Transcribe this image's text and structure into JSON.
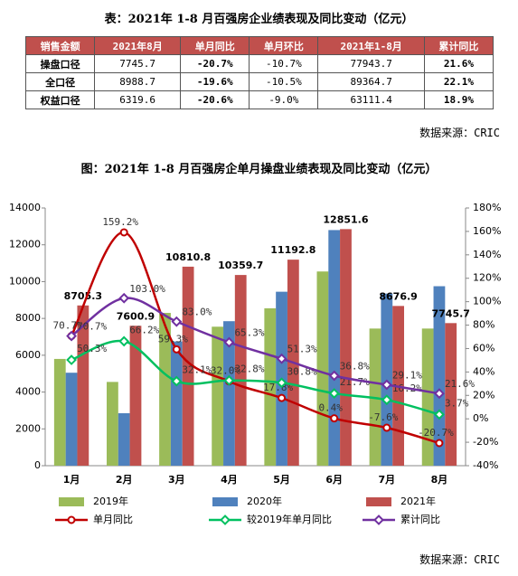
{
  "table_title": "表：2021年 1-8 月百强房企业绩表现及同比变动（亿元）",
  "table": {
    "header": [
      "销售金额",
      "2021年8月",
      "单月同比",
      "单月环比",
      "2021年1-8月",
      "累计同比"
    ],
    "rows": [
      [
        "操盘口径",
        "7745.7",
        "-20.7%",
        "-10.7%",
        "77943.7",
        "21.6%"
      ],
      [
        "全口径",
        "8988.7",
        "-19.6%",
        "-10.5%",
        "89364.7",
        "22.1%"
      ],
      [
        "权益口径",
        "6319.6",
        "-20.6%",
        "-9.0%",
        "63111.4",
        "18.9%"
      ]
    ]
  },
  "table_source": "数据来源：CRIC",
  "chart_data": {
    "type": "bar",
    "title": "图：2021年 1-8 月百强房企单月操盘业绩表现及同比变动（亿元）",
    "categories": [
      "1月",
      "2月",
      "3月",
      "4月",
      "5月",
      "6月",
      "7月",
      "8月"
    ],
    "series": [
      {
        "name": "2019年",
        "type": "bar",
        "color": "#9bbb59",
        "values": [
          5800,
          4550,
          8300,
          7550,
          8550,
          10550,
          7450,
          7450
        ]
      },
      {
        "name": "2020年",
        "type": "bar",
        "color": "#4f81bd",
        "values": [
          5050,
          2850,
          6750,
          7850,
          9450,
          12800,
          9350,
          9750
        ]
      },
      {
        "name": "2021年",
        "type": "bar",
        "color": "#c0504d",
        "values": [
          8705.3,
          7600.9,
          10810.8,
          10359.7,
          11192.8,
          12851.6,
          8676.9,
          7745.7
        ]
      },
      {
        "name": "单月同比",
        "type": "line",
        "axis": "y2",
        "color": "#c00000",
        "marker": "circle",
        "values": [
          70.7,
          159.2,
          59.3,
          32.0,
          17.8,
          0.4,
          -7.6,
          -20.7
        ],
        "value_labels": [
          "70.7%",
          "159.2%",
          "59.3%",
          "32.0%",
          "17.8%",
          "0.4%",
          "-7.6%",
          "-20.7%"
        ]
      },
      {
        "name": "较2019年单月同比",
        "type": "line",
        "axis": "y2",
        "color": "#00c060",
        "marker": "diamond",
        "values": [
          50.3,
          66.2,
          32.1,
          32.8,
          30.8,
          21.7,
          16.2,
          3.7
        ],
        "value_labels": [
          "50.3%",
          "66.2%",
          "32.1%",
          "32.8%",
          "30.8%",
          "21.7%",
          "16.2%",
          "3.7%"
        ]
      },
      {
        "name": "累计同比",
        "type": "line",
        "axis": "y2",
        "color": "#7030a0",
        "marker": "diamond",
        "values": [
          70.7,
          103.0,
          83.0,
          65.3,
          51.3,
          36.8,
          29.1,
          21.6
        ],
        "value_labels": [
          "70.7%",
          "103.0%",
          "83.0%",
          "65.3%",
          "51.3%",
          "36.8%",
          "29.1%",
          "21.6%"
        ]
      }
    ],
    "ylim": [
      0,
      14000
    ],
    "yticks": [
      0,
      2000,
      4000,
      6000,
      8000,
      10000,
      12000,
      14000
    ],
    "y2lim": [
      -40,
      180
    ],
    "y2ticks": [
      {
        "value": -40,
        "label": "-40%"
      },
      {
        "value": -20,
        "label": "-20%"
      },
      {
        "value": 0,
        "label": "0%"
      },
      {
        "value": 20,
        "label": "20%"
      },
      {
        "value": 40,
        "label": "40%"
      },
      {
        "value": 60,
        "label": "60%"
      },
      {
        "value": 80,
        "label": "80%"
      },
      {
        "value": 100,
        "label": "100%"
      },
      {
        "value": 120,
        "label": "120%"
      },
      {
        "value": 140,
        "label": "140%"
      },
      {
        "value": 160,
        "label": "160%"
      },
      {
        "value": 180,
        "label": "180%"
      }
    ],
    "source": "数据来源：CRIC"
  }
}
